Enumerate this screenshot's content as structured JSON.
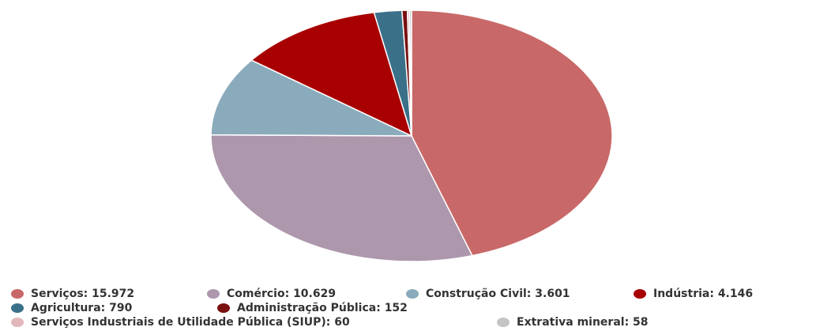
{
  "chart_data": {
    "type": "pie",
    "categories": [
      "Serviços: 15.972",
      "Comércio: 10.629",
      "Construção Civil: 3.601",
      "Indústria: 4.146",
      "Agricultura: 790",
      "Administração Pública: 152",
      "Serviços Industriais de Utilidade Pública (SIUP): 60",
      "Extrativa mineral: 58"
    ],
    "values": [
      15972,
      10629,
      3601,
      4146,
      790,
      152,
      60,
      58
    ],
    "colors": [
      "#c96868",
      "#ad97ac",
      "#8aabbb",
      "#a80000",
      "#3b7089",
      "#7a1010",
      "#e2b7bb",
      "#c4c4c4"
    ],
    "legend": "bottom"
  }
}
